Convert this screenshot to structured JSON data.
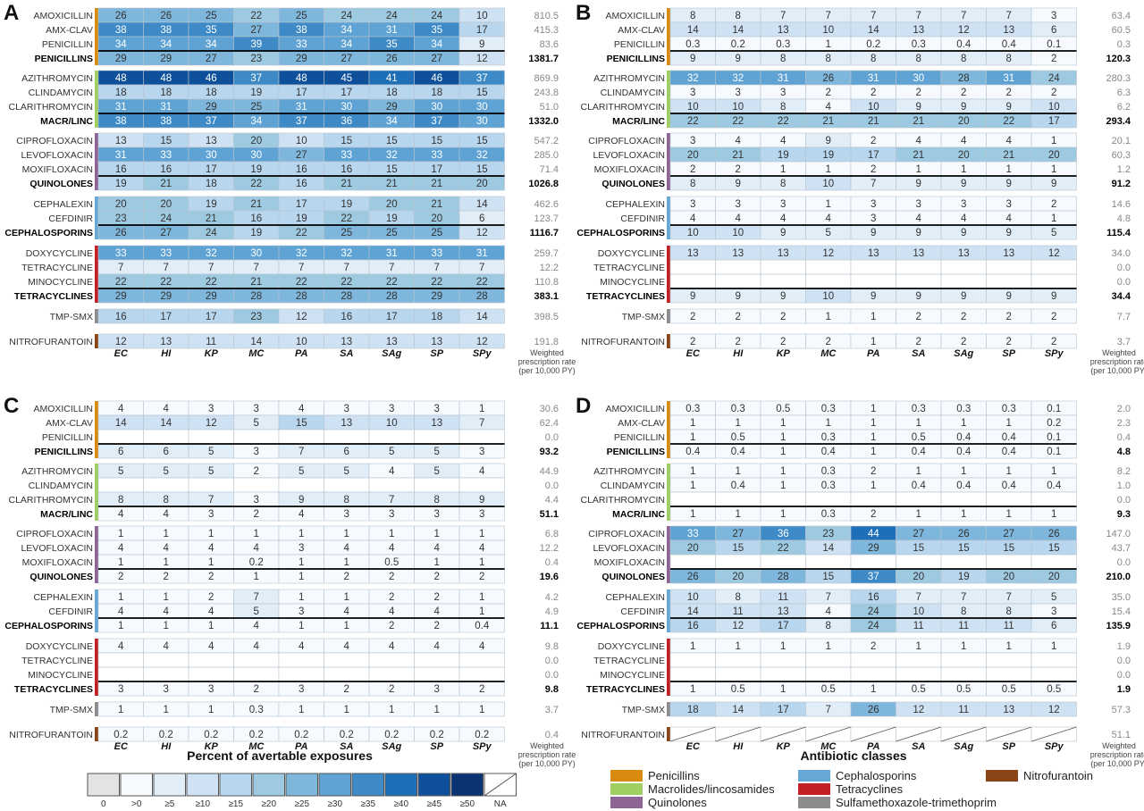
{
  "chart_data": {
    "type": "heatmap",
    "columns": [
      "EC",
      "HI",
      "KP",
      "MC",
      "PA",
      "SA",
      "SAg",
      "SP",
      "SPy"
    ],
    "rate_label_lines": [
      "Weighted",
      "prescription rate",
      "(per 10,000 PY)"
    ],
    "rows": [
      "AMOXICILLIN",
      "AMX-CLAV",
      "PENICILLIN",
      "PENICILLINS",
      "AZITHROMYCIN",
      "CLINDAMYCIN",
      "CLARITHROMYCIN",
      "MACR/LINC",
      "CIPROFLOXACIN",
      "LEVOFLOXACIN",
      "MOXIFLOXACIN",
      "QUINOLONES",
      "CEPHALEXIN",
      "CEFDINIR",
      "CEPHALOSPORINS",
      "DOXYCYCLINE",
      "TETRACYCLINE",
      "MINOCYCLINE",
      "TETRACYCLINES",
      "TMP-SMX",
      "NITROFURANTOIN"
    ],
    "panels": [
      {
        "label": "A",
        "values": [
          [
            26,
            26,
            25,
            22,
            25,
            24,
            24,
            24,
            10
          ],
          [
            38,
            38,
            35,
            27,
            38,
            34,
            31,
            35,
            17
          ],
          [
            34,
            34,
            34,
            39,
            33,
            34,
            35,
            34,
            9
          ],
          [
            29,
            29,
            27,
            23,
            29,
            27,
            26,
            27,
            12
          ],
          [
            48,
            48,
            46,
            37,
            48,
            45,
            41,
            46,
            37
          ],
          [
            18,
            18,
            18,
            19,
            17,
            17,
            18,
            18,
            15
          ],
          [
            31,
            31,
            29,
            25,
            31,
            30,
            29,
            30,
            30
          ],
          [
            38,
            38,
            37,
            34,
            37,
            36,
            34,
            37,
            30
          ],
          [
            13,
            15,
            13,
            20,
            10,
            15,
            15,
            15,
            15
          ],
          [
            31,
            33,
            30,
            30,
            27,
            33,
            32,
            33,
            32
          ],
          [
            16,
            16,
            17,
            19,
            16,
            16,
            15,
            17,
            15
          ],
          [
            19,
            21,
            18,
            22,
            16,
            21,
            21,
            21,
            20
          ],
          [
            20,
            20,
            19,
            21,
            17,
            19,
            20,
            21,
            14
          ],
          [
            23,
            24,
            21,
            16,
            19,
            22,
            19,
            20,
            6
          ],
          [
            26,
            27,
            24,
            19,
            22,
            25,
            25,
            25,
            12
          ],
          [
            33,
            33,
            32,
            30,
            32,
            32,
            31,
            33,
            31
          ],
          [
            7,
            7,
            7,
            7,
            7,
            7,
            7,
            7,
            7
          ],
          [
            22,
            22,
            22,
            21,
            22,
            22,
            22,
            22,
            22
          ],
          [
            29,
            29,
            29,
            28,
            28,
            28,
            28,
            29,
            28
          ],
          [
            16,
            17,
            17,
            23,
            12,
            16,
            17,
            18,
            14
          ],
          [
            12,
            13,
            11,
            14,
            10,
            13,
            13,
            13,
            12
          ]
        ],
        "rates": [
          "810.5",
          "415.3",
          "83.6",
          "1381.7",
          "869.9",
          "243.8",
          "51.0",
          "1332.0",
          "547.2",
          "285.0",
          "71.4",
          "1026.8",
          "462.6",
          "123.7",
          "1116.7",
          "259.7",
          "12.2",
          "110.8",
          "383.1",
          "398.5",
          "191.8"
        ]
      },
      {
        "label": "B",
        "values": [
          [
            8,
            8,
            7,
            7,
            7,
            7,
            7,
            7,
            3
          ],
          [
            14,
            14,
            13,
            10,
            14,
            13,
            12,
            13,
            6
          ],
          [
            0.3,
            0.2,
            0.3,
            1,
            0.2,
            0.3,
            0.4,
            0.4,
            0.1
          ],
          [
            9,
            9,
            8,
            8,
            8,
            8,
            8,
            8,
            2
          ],
          [
            32,
            32,
            31,
            26,
            31,
            30,
            28,
            31,
            24
          ],
          [
            3,
            3,
            3,
            2,
            2,
            2,
            2,
            2,
            2
          ],
          [
            10,
            10,
            8,
            4,
            10,
            9,
            9,
            9,
            10
          ],
          [
            22,
            22,
            22,
            21,
            21,
            21,
            20,
            22,
            17
          ],
          [
            3,
            4,
            4,
            9,
            2,
            4,
            4,
            4,
            1
          ],
          [
            20,
            21,
            19,
            19,
            17,
            21,
            20,
            21,
            20
          ],
          [
            2,
            2,
            1,
            1,
            2,
            1,
            1,
            1,
            1
          ],
          [
            8,
            9,
            8,
            10,
            7,
            9,
            9,
            9,
            9
          ],
          [
            3,
            3,
            3,
            1,
            3,
            3,
            3,
            3,
            2
          ],
          [
            4,
            4,
            4,
            4,
            3,
            4,
            4,
            4,
            1
          ],
          [
            10,
            10,
            9,
            5,
            9,
            9,
            9,
            9,
            5
          ],
          [
            13,
            13,
            13,
            12,
            13,
            13,
            13,
            13,
            12
          ],
          [
            "NA",
            "NA",
            "NA",
            "NA",
            "NA",
            "NA",
            "NA",
            "NA",
            "NA"
          ],
          [
            "NA",
            "NA",
            "NA",
            "NA",
            "NA",
            "NA",
            "NA",
            "NA",
            "NA"
          ],
          [
            9,
            9,
            9,
            10,
            9,
            9,
            9,
            9,
            9
          ],
          [
            2,
            2,
            2,
            1,
            1,
            2,
            2,
            2,
            2
          ],
          [
            2,
            2,
            2,
            2,
            1,
            2,
            2,
            2,
            2
          ]
        ],
        "rates": [
          "63.4",
          "60.5",
          "0.3",
          "120.3",
          "280.3",
          "6.3",
          "6.2",
          "293.4",
          "20.1",
          "60.3",
          "1.2",
          "91.2",
          "14.6",
          "4.8",
          "115.4",
          "34.0",
          "0.0",
          "0.0",
          "34.4",
          "7.7",
          "3.7"
        ]
      },
      {
        "label": "C",
        "values": [
          [
            4,
            4,
            3,
            3,
            4,
            3,
            3,
            3,
            1
          ],
          [
            14,
            14,
            12,
            5,
            15,
            13,
            10,
            13,
            7
          ],
          [
            "NA",
            "NA",
            "NA",
            "NA",
            "NA",
            "NA",
            "NA",
            "NA",
            "NA"
          ],
          [
            6,
            6,
            5,
            3,
            7,
            6,
            5,
            5,
            3
          ],
          [
            5,
            5,
            5,
            2,
            5,
            5,
            4,
            5,
            4
          ],
          [
            "NA",
            "NA",
            "NA",
            "NA",
            "NA",
            "NA",
            "NA",
            "NA",
            "NA"
          ],
          [
            8,
            8,
            7,
            3,
            9,
            8,
            7,
            8,
            9
          ],
          [
            4,
            4,
            3,
            2,
            4,
            3,
            3,
            3,
            3
          ],
          [
            1,
            1,
            1,
            1,
            1,
            1,
            1,
            1,
            1
          ],
          [
            4,
            4,
            4,
            4,
            3,
            4,
            4,
            4,
            4
          ],
          [
            1,
            1,
            1,
            0.2,
            1,
            1,
            0.5,
            1,
            1
          ],
          [
            2,
            2,
            2,
            1,
            1,
            2,
            2,
            2,
            2
          ],
          [
            1,
            1,
            2,
            7,
            1,
            1,
            2,
            2,
            1
          ],
          [
            4,
            4,
            4,
            5,
            3,
            4,
            4,
            4,
            1
          ],
          [
            1,
            1,
            1,
            4,
            1,
            1,
            2,
            2,
            0.4
          ],
          [
            4,
            4,
            4,
            4,
            4,
            4,
            4,
            4,
            4
          ],
          [
            "NA",
            "NA",
            "NA",
            "NA",
            "NA",
            "NA",
            "NA",
            "NA",
            "NA"
          ],
          [
            "NA",
            "NA",
            "NA",
            "NA",
            "NA",
            "NA",
            "NA",
            "NA",
            "NA"
          ],
          [
            3,
            3,
            3,
            2,
            3,
            2,
            2,
            3,
            2
          ],
          [
            1,
            1,
            1,
            0.3,
            1,
            1,
            1,
            1,
            1
          ],
          [
            0.2,
            0.2,
            0.2,
            0.2,
            0.2,
            0.2,
            0.2,
            0.2,
            0.2
          ]
        ],
        "rates": [
          "30.6",
          "62.4",
          "0.0",
          "93.2",
          "44.9",
          "0.0",
          "4.4",
          "51.1",
          "6.8",
          "12.2",
          "0.4",
          "19.6",
          "4.2",
          "4.9",
          "11.1",
          "9.8",
          "0.0",
          "0.0",
          "9.8",
          "3.7",
          "0.4"
        ]
      },
      {
        "label": "D",
        "values": [
          [
            0.3,
            0.3,
            0.5,
            0.3,
            1,
            0.3,
            0.3,
            0.3,
            0.1
          ],
          [
            1,
            1,
            1,
            1,
            1,
            1,
            1,
            1,
            0.2
          ],
          [
            1,
            0.5,
            1,
            0.3,
            1,
            0.5,
            0.4,
            0.4,
            0.1
          ],
          [
            0.4,
            0.4,
            1,
            0.4,
            1,
            0.4,
            0.4,
            0.4,
            0.1
          ],
          [
            1,
            1,
            1,
            0.3,
            2,
            1,
            1,
            1,
            1
          ],
          [
            1,
            0.4,
            1,
            0.3,
            1,
            0.4,
            0.4,
            0.4,
            0.4
          ],
          [
            "NA",
            "NA",
            "NA",
            "NA",
            "NA",
            "NA",
            "NA",
            "NA",
            "NA"
          ],
          [
            1,
            1,
            1,
            0.3,
            2,
            1,
            1,
            1,
            1
          ],
          [
            33,
            27,
            36,
            23,
            44,
            27,
            26,
            27,
            26
          ],
          [
            20,
            15,
            22,
            14,
            29,
            15,
            15,
            15,
            15
          ],
          [
            "NA",
            "NA",
            "NA",
            "NA",
            "NA",
            "NA",
            "NA",
            "NA",
            "NA"
          ],
          [
            26,
            20,
            28,
            15,
            37,
            20,
            19,
            20,
            20
          ],
          [
            10,
            8,
            11,
            7,
            16,
            7,
            7,
            7,
            5
          ],
          [
            14,
            11,
            13,
            4,
            24,
            10,
            8,
            8,
            3
          ],
          [
            16,
            12,
            17,
            8,
            24,
            11,
            11,
            11,
            6
          ],
          [
            1,
            1,
            1,
            1,
            2,
            1,
            1,
            1,
            1
          ],
          [
            "NA",
            "NA",
            "NA",
            "NA",
            "NA",
            "NA",
            "NA",
            "NA",
            "NA"
          ],
          [
            "NA",
            "NA",
            "NA",
            "NA",
            "NA",
            "NA",
            "NA",
            "NA",
            "NA"
          ],
          [
            1,
            0.5,
            1,
            0.5,
            1,
            0.5,
            0.5,
            0.5,
            0.5
          ],
          [
            18,
            14,
            17,
            7,
            26,
            12,
            11,
            13,
            12
          ],
          [
            "X",
            "X",
            "X",
            "X",
            "X",
            "X",
            "X",
            "X",
            "X"
          ]
        ],
        "rates": [
          "2.0",
          "2.3",
          "0.4",
          "4.8",
          "8.2",
          "1.0",
          "0.0",
          "9.3",
          "147.0",
          "43.7",
          "0.0",
          "210.0",
          "35.0",
          "15.4",
          "135.9",
          "1.9",
          "0.0",
          "0.0",
          "1.9",
          "57.3",
          "51.1"
        ]
      }
    ],
    "color_legend": {
      "title": "Percent of avertable exposures",
      "labels": [
        "0",
        ">0",
        "≥5",
        "≥10",
        "≥15",
        "≥20",
        "≥25",
        "≥30",
        "≥35",
        "≥40",
        "≥45",
        "≥50",
        "NA"
      ],
      "colors": [
        "#e3e3e3",
        "#f6fafe",
        "#e1eef8",
        "#cfe2f3",
        "#b8d6ee",
        "#9ecae1",
        "#7fb7dc",
        "#5fa3d4",
        "#3e8ac6",
        "#1f6fb8",
        "#0e519a",
        "#0a3474",
        "#ffffff"
      ]
    },
    "class_legend": {
      "title": "Antibiotic classes",
      "items": [
        {
          "name": "Penicillins",
          "color": "#d98b10"
        },
        {
          "name": "Macrolides/lincosamides",
          "color": "#9fcf62"
        },
        {
          "name": "Quinolones",
          "color": "#8e6496"
        },
        {
          "name": "Cephalosporins",
          "color": "#66a7d6"
        },
        {
          "name": "Tetracyclines",
          "color": "#c32026"
        },
        {
          "name": "Sulfamethoxazole-trimethoprim",
          "color": "#8c8c8c"
        },
        {
          "name": "Nitrofurantoin",
          "color": "#8a4415"
        }
      ]
    },
    "class_colors": [
      "#d98b10",
      "#9fcf62",
      "#8e6496",
      "#66a7d6",
      "#c32026",
      "#8c8c8c",
      "#8a4415"
    ]
  }
}
